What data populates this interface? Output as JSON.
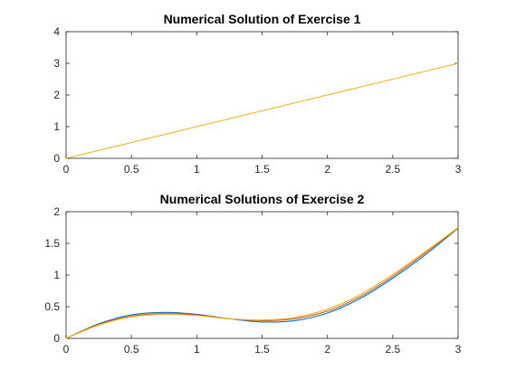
{
  "chart_data": [
    {
      "type": "line",
      "title": "Numerical Solution of Exercise 1",
      "xlabel": "",
      "ylabel": "",
      "xlim": [
        0,
        3
      ],
      "ylim": [
        0,
        4
      ],
      "xticks": [
        0,
        0.5,
        1,
        1.5,
        2,
        2.5,
        3
      ],
      "yticks": [
        0,
        1,
        2,
        3,
        4
      ],
      "grid": false,
      "series": [
        {
          "color": "#EDB120",
          "x": [
            0,
            0.5,
            1,
            1.5,
            2,
            2.5,
            3
          ],
          "y": [
            0,
            0.5,
            1,
            1.5,
            2,
            2.5,
            3
          ]
        }
      ]
    },
    {
      "type": "line",
      "title": "Numerical Solutions of Exercise 2",
      "xlabel": "",
      "ylabel": "",
      "xlim": [
        0,
        3
      ],
      "ylim": [
        0,
        2
      ],
      "xticks": [
        0,
        0.5,
        1,
        1.5,
        2,
        2.5,
        3
      ],
      "yticks": [
        0,
        0.5,
        1,
        1.5,
        2
      ],
      "grid": false,
      "series": [
        {
          "color": "#0072BD",
          "x": [
            0,
            0.25,
            0.5,
            0.75,
            1.0,
            1.25,
            1.5,
            1.75,
            2.0,
            2.25,
            2.5,
            2.75,
            3.0
          ],
          "y": [
            0,
            0.23,
            0.37,
            0.41,
            0.38,
            0.31,
            0.26,
            0.28,
            0.4,
            0.63,
            0.95,
            1.32,
            1.74
          ]
        },
        {
          "color": "#D95319",
          "x": [
            0,
            0.25,
            0.5,
            0.75,
            1.0,
            1.25,
            1.5,
            1.75,
            2.0,
            2.25,
            2.5,
            2.75,
            3.0
          ],
          "y": [
            0,
            0.22,
            0.35,
            0.39,
            0.37,
            0.31,
            0.28,
            0.31,
            0.43,
            0.66,
            0.98,
            1.35,
            1.74
          ]
        },
        {
          "color": "#EDB120",
          "x": [
            0,
            0.25,
            0.5,
            0.75,
            1.0,
            1.25,
            1.5,
            1.75,
            2.0,
            2.25,
            2.5,
            2.75,
            3.0
          ],
          "y": [
            0,
            0.21,
            0.34,
            0.38,
            0.36,
            0.31,
            0.29,
            0.33,
            0.46,
            0.69,
            1.01,
            1.37,
            1.75
          ]
        }
      ]
    }
  ]
}
